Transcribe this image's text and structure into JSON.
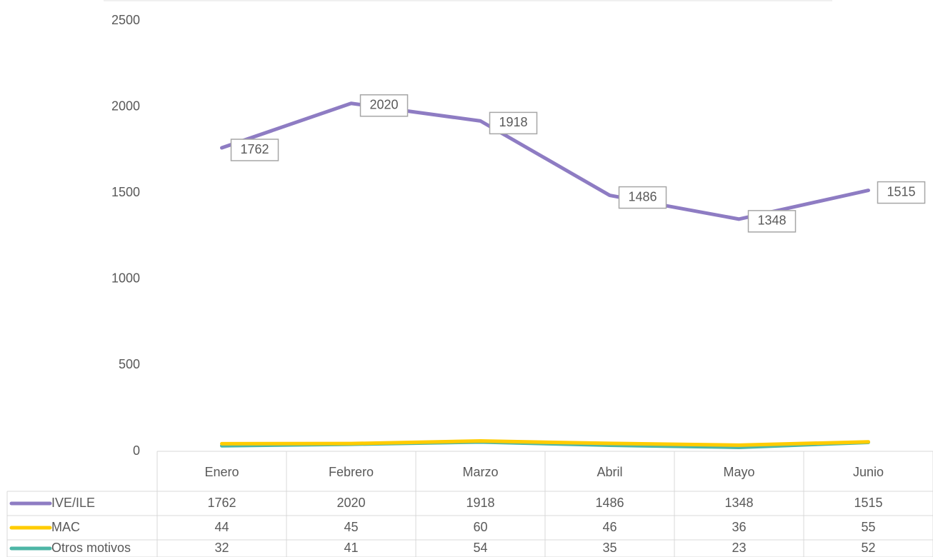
{
  "chart_data": {
    "type": "line",
    "categories": [
      "Enero",
      "Febrero",
      "Marzo",
      "Abril",
      "Mayo",
      "Junio"
    ],
    "series": [
      {
        "name": "IVE/ILE",
        "color": "#8e7cc3",
        "values": [
          1762,
          2020,
          1918,
          1486,
          1348,
          1515
        ],
        "data_labels": true
      },
      {
        "name": "MAC",
        "color": "#ffcc00",
        "values": [
          44,
          45,
          60,
          46,
          36,
          55
        ]
      },
      {
        "name": "Otros motivos",
        "color": "#4db6a6",
        "values": [
          32,
          41,
          54,
          35,
          23,
          52
        ]
      }
    ],
    "ylim": [
      0,
      2500
    ],
    "yticks": [
      0,
      500,
      1000,
      1500,
      2000,
      2500
    ],
    "grid": false,
    "data_table": true
  }
}
